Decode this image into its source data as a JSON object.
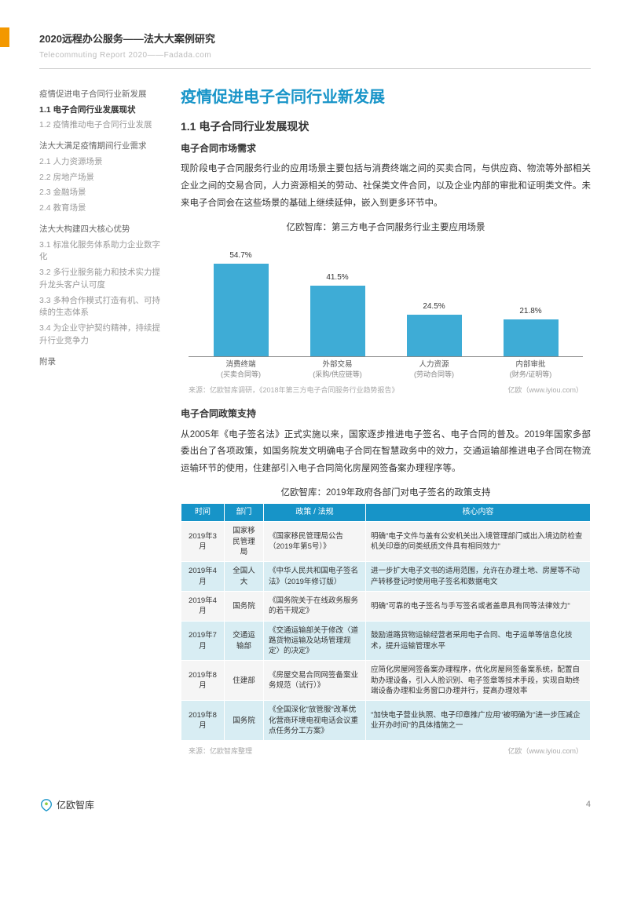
{
  "header": {
    "title_cn": "2020远程办公服务——法大大案例研究",
    "title_en": "Telecommuting Report 2020——Fadada.com"
  },
  "toc": {
    "g1_title": "疫情促进电子合同行业新发展",
    "g1_items": [
      "1.1 电子合同行业发展现状",
      "1.2 疫情推动电子合同行业发展"
    ],
    "g2_title": "法大大满足疫情期间行业需求",
    "g2_items": [
      "2.1 人力资源场景",
      "2.2 房地产场景",
      "2.3 金融场景",
      "2.4 教育场景"
    ],
    "g3_title": "法大大构建四大核心优势",
    "g3_items": [
      "3.1 标准化服务体系助力企业数字化",
      "3.2 多行业服务能力和技术实力提升龙头客户认可度",
      "3.3 多种合作模式打造有机、可持续的生态体系",
      "3.4 为企业守护契约精神，持续提升行业竞争力"
    ],
    "appendix": "附录"
  },
  "main": {
    "section_title": "疫情促进电子合同行业新发展",
    "subsection_title": "1.1 电子合同行业发展现状",
    "block1_title": "电子合同市场需求",
    "block1_body": "现阶段电子合同服务行业的应用场景主要包括与消费终端之间的买卖合同，与供应商、物流等外部相关企业之间的交易合同，人力资源相关的劳动、社保类文件合同，以及企业内部的审批和证明类文件。未来电子合同会在这些场景的基础上继续延伸，嵌入到更多环节中。",
    "chart": {
      "title": "亿欧智库：第三方电子合同服务行业主要应用场景",
      "type": "bar",
      "categories": [
        {
          "l1": "消费终端",
          "l2": "(买卖合同等)"
        },
        {
          "l1": "外部交易",
          "l2": "(采购/供应链等)"
        },
        {
          "l1": "人力资源",
          "l2": "(劳动合同等)"
        },
        {
          "l1": "内部审批",
          "l2": "(财务/证明等)"
        }
      ],
      "values": [
        54.7,
        41.5,
        24.5,
        21.8
      ],
      "labels": [
        "54.7%",
        "41.5%",
        "24.5%",
        "21.8%"
      ],
      "bar_color": "#3eacd6",
      "ylim": [
        0,
        60
      ],
      "source_left": "来源：亿欧智库调研，《2018年第三方电子合同服务行业趋势报告》",
      "source_right": "亿欧（www.iyiou.com）"
    },
    "block2_title": "电子合同政策支持",
    "block2_body": "从2005年《电子签名法》正式实施以来，国家逐步推进电子签名、电子合同的普及。2019年国家多部委出台了各项政策，如国务院发文明确电子合同在智慧政务中的效力，交通运输部推进电子合同在物流运输环节的使用，住建部引入电子合同简化房屋网签备案办理程序等。",
    "table": {
      "title": "亿欧智库：2019年政府各部门对电子签名的政策支持",
      "headers": [
        "时间",
        "部门",
        "政策 / 法规",
        "核心内容"
      ],
      "rows": [
        {
          "time": "2019年3月",
          "dept": "国家移民管理局",
          "policy": "《国家移民管理局公告（2019年第5号）》",
          "content": "明确\"电子文件与盖有公安机关出入境管理部门或出入境边防检查机关印章的同类纸质文件具有相同效力\""
        },
        {
          "time": "2019年4月",
          "dept": "全国人大",
          "policy": "《中华人民共和国电子签名法》（2019年修订版）",
          "content": "进一步扩大电子文书的适用范围，允许在办理土地、房屋等不动产转移登记时使用电子签名和数据电文"
        },
        {
          "time": "2019年4月",
          "dept": "国务院",
          "policy": "《国务院关于在线政务服务的若干规定》",
          "content": "明确\"可靠的电子签名与手写签名或者盖章具有同等法律效力\""
        },
        {
          "time": "2019年7月",
          "dept": "交通运输部",
          "policy": "《交通运输部关于修改〈道路货物运输及站场管理规定〉的决定》",
          "content": "鼓励道路货物运输经营者采用电子合同、电子运单等信息化技术，提升运输管理水平"
        },
        {
          "time": "2019年8月",
          "dept": "住建部",
          "policy": "《房屋交易合同网签备案业务规范（试行）》",
          "content": "应简化房屋网签备案办理程序，优化房屋网签备案系统，配置自助办理设备，引入人脸识别、电子签章等技术手段，实现自助终端设备办理和业务窗口办理并行，提高办理效率"
        },
        {
          "time": "2019年8月",
          "dept": "国务院",
          "policy": "《全国深化\"放管服\"改革优化营商环境电视电话会议重点任务分工方案》",
          "content": "\"加快电子营业执照、电子印章推广应用\"被明确为\"进一步压减企业开办时间\"的具体措施之一"
        }
      ],
      "source_left": "来源：亿欧智库整理",
      "source_right": "亿欧（www.iyiou.com）"
    }
  },
  "footer": {
    "logo_text": "亿欧智库",
    "page_num": "4"
  }
}
